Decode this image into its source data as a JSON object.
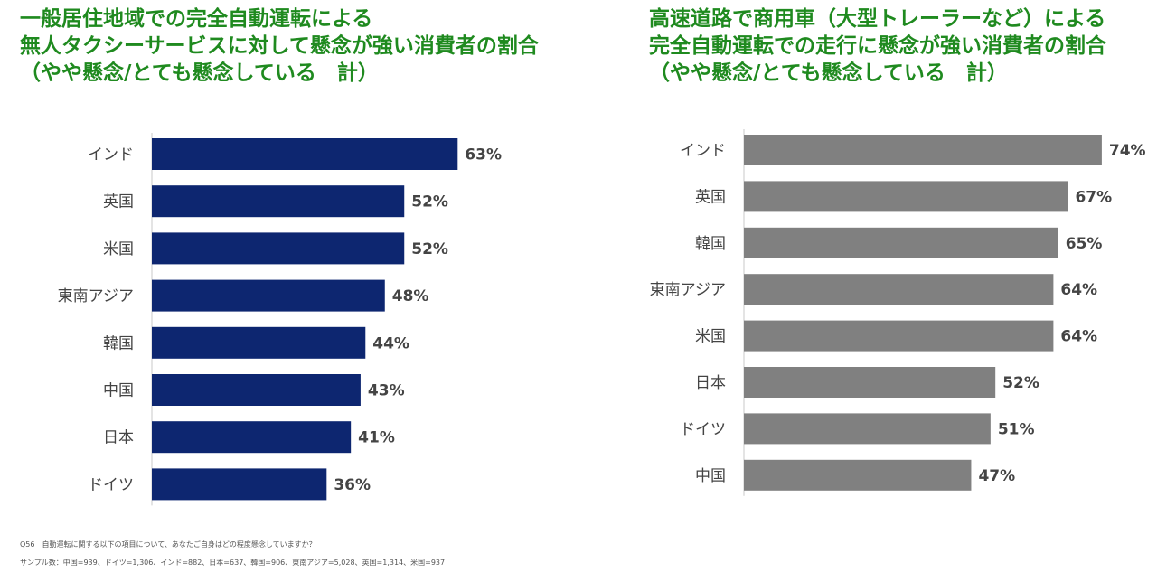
{
  "colors": {
    "title": "#1f8a1f",
    "left_bar": "#0d2670",
    "right_bar": "#808080",
    "text": "#444444",
    "axis": "#c8c8c8"
  },
  "chart_data": [
    {
      "type": "bar",
      "orientation": "horizontal",
      "title_lines": [
        "一般居住地域での完全自動運転による",
        "無人タクシーサービスに対して懸念が強い消費者の割合",
        "（やや懸念/とても懸念している　計）"
      ],
      "categories": [
        "インド",
        "英国",
        "米国",
        "東南アジア",
        "韓国",
        "中国",
        "日本",
        "ドイツ"
      ],
      "values": [
        63,
        52,
        52,
        48,
        44,
        43,
        41,
        36
      ],
      "labels": [
        "63%",
        "52%",
        "52%",
        "48%",
        "44%",
        "43%",
        "41%",
        "36%"
      ],
      "unit": "%",
      "xlim": [
        0,
        100
      ]
    },
    {
      "type": "bar",
      "orientation": "horizontal",
      "title_lines": [
        "高速道路で商用車（大型トレーラーなど）による",
        "完全自動運転での走行に懸念が強い消費者の割合",
        "（やや懸念/とても懸念している　計）"
      ],
      "categories": [
        "インド",
        "英国",
        "韓国",
        "東南アジア",
        "米国",
        "日本",
        "ドイツ",
        "中国"
      ],
      "values": [
        74,
        67,
        65,
        64,
        64,
        52,
        51,
        47
      ],
      "labels": [
        "74%",
        "67%",
        "65%",
        "64%",
        "64%",
        "52%",
        "51%",
        "47%"
      ],
      "unit": "%",
      "xlim": [
        0,
        100
      ]
    }
  ],
  "footnotes": {
    "question": "Q56　自動運転に関する以下の項目について、あなたご自身はどの程度懸念していますか？",
    "sample": "サンプル数：中国=939、ドイツ=1,306、インド=882、日本=637、韓国=906、東南アジア=5,028、英国=1,314、米国=937"
  }
}
